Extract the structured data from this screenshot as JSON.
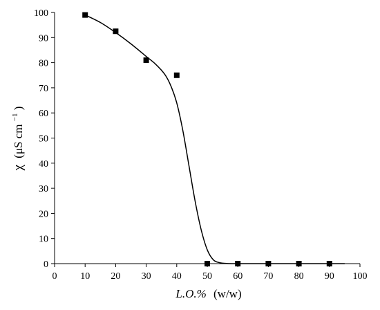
{
  "chart_data": {
    "type": "scatter",
    "title": "",
    "xlabel": {
      "main": "L.O.%",
      "unit": "(w/w)"
    },
    "ylabel": {
      "symbol": "χ",
      "unit_open": "(μS cm",
      "unit_sup": "−1",
      "unit_close": ")"
    },
    "xlim": [
      0,
      100
    ],
    "ylim": [
      0,
      100
    ],
    "xticks": [
      0,
      10,
      20,
      30,
      40,
      50,
      60,
      70,
      80,
      90,
      100
    ],
    "yticks": [
      0,
      10,
      20,
      30,
      40,
      50,
      60,
      70,
      80,
      90,
      100
    ],
    "grid": false,
    "series": [
      {
        "marker": "square",
        "x": [
          10,
          20,
          30,
          40,
          50,
          60,
          70,
          80,
          90
        ],
        "y": [
          99,
          92.5,
          81,
          75,
          0,
          0,
          0,
          0,
          0
        ]
      }
    ],
    "fit_curve": {
      "x": [
        10,
        15,
        20,
        25,
        30,
        33,
        36,
        38,
        40,
        42,
        44,
        46,
        48,
        50,
        52,
        54,
        56,
        58,
        60,
        65,
        70,
        75,
        80,
        85,
        90,
        95
      ],
      "y": [
        99,
        96,
        92,
        87.5,
        82.5,
        79.5,
        75.5,
        71,
        64,
        53,
        39,
        25,
        13.5,
        5.5,
        1.5,
        0.4,
        0.1,
        0,
        0,
        0,
        0,
        0,
        0,
        0,
        0,
        0
      ]
    },
    "colors": {
      "marker": "#000000",
      "line": "#000000"
    }
  }
}
